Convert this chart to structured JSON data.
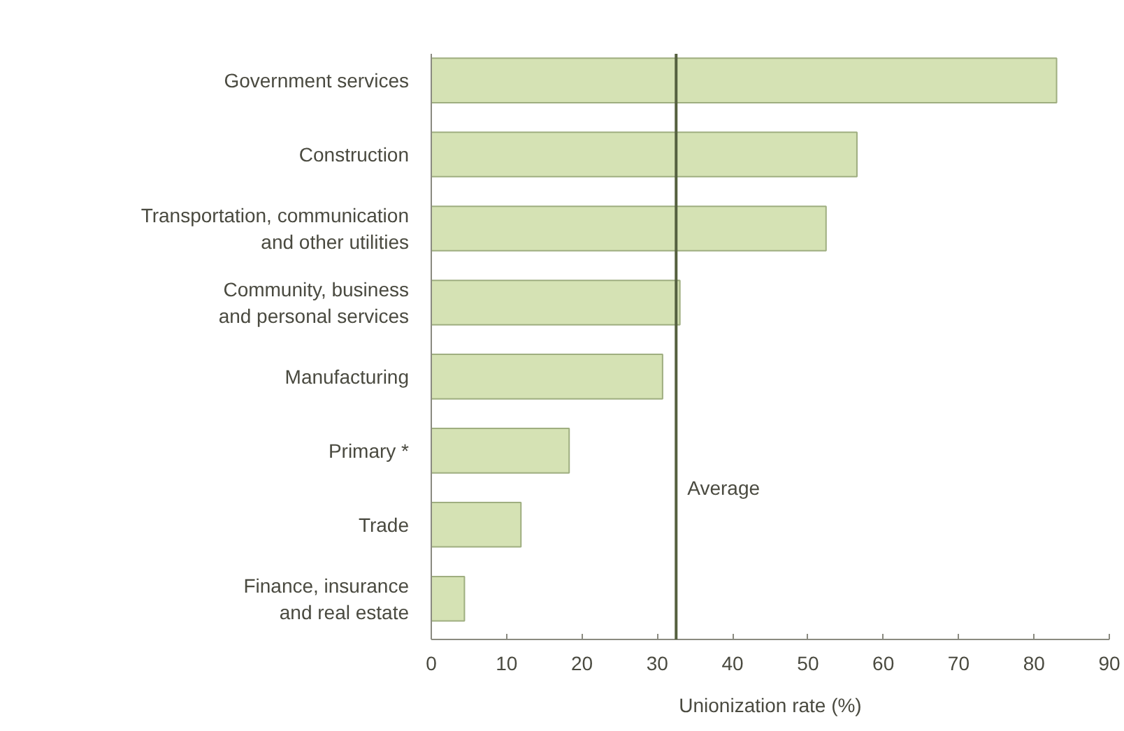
{
  "chart_data": {
    "type": "bar",
    "orientation": "horizontal",
    "xlabel": "Unionization rate (%)",
    "categories": [
      "Government services",
      "Construction",
      "Transportation, communication\nand other utilities",
      "Community, business\nand personal services",
      "Manufacturing",
      "Primary *",
      "Trade",
      "Finance, insurance\nand real estate"
    ],
    "values": [
      83,
      56.5,
      52.4,
      33,
      30.7,
      18.3,
      11.9,
      4.4
    ],
    "color": "#d5e2b4",
    "xlim": [
      0,
      90
    ],
    "xticks": [
      0,
      10,
      20,
      30,
      40,
      50,
      60,
      70,
      80,
      90
    ],
    "ref_lines": [
      {
        "axis": "x",
        "value": 32.5,
        "label": "Average",
        "color": "#55603f"
      }
    ],
    "grid": false
  }
}
